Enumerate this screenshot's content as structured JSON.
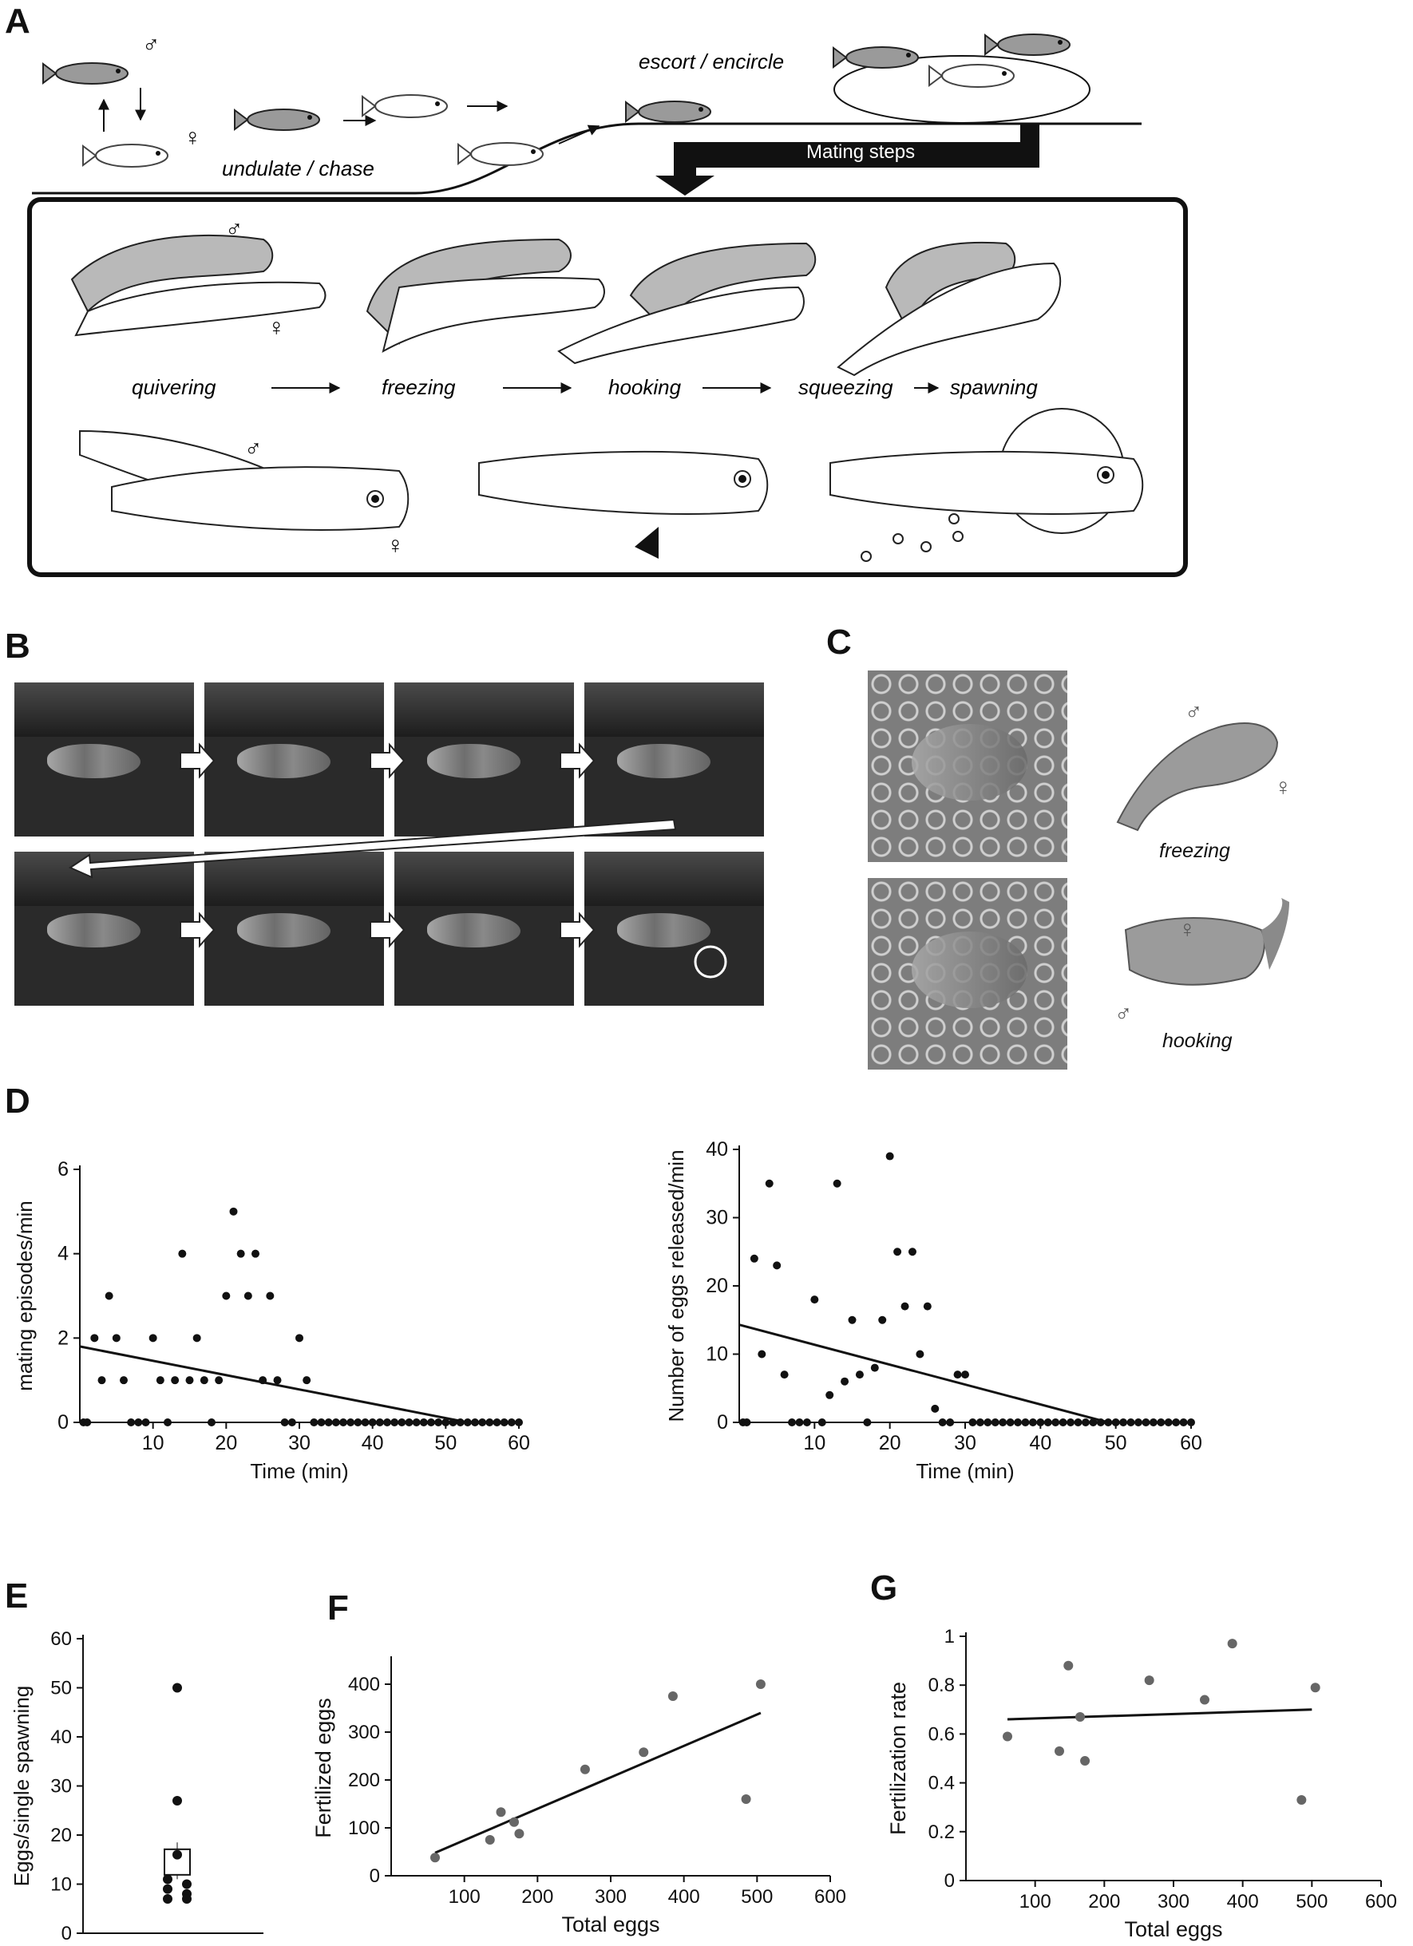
{
  "panels": {
    "A": {
      "label": "A",
      "texts": {
        "escort": "escort / encircle",
        "undulate": "undulate / chase",
        "mating_steps": "Mating steps",
        "male": "♂",
        "female": "♀"
      },
      "steps": [
        "quivering",
        "freezing",
        "hooking",
        "squeezing",
        "spawning"
      ]
    },
    "B": {
      "label": "B"
    },
    "C": {
      "label": "C",
      "freezing": "freezing",
      "hooking": "hooking",
      "male": "♂",
      "female": "♀"
    },
    "D": {
      "label": "D"
    },
    "E": {
      "label": "E"
    },
    "F": {
      "label": "F"
    },
    "G": {
      "label": "G"
    }
  },
  "chart_data": [
    {
      "id": "D-left",
      "type": "scatter",
      "ylabel": "mating episodes/min",
      "xlabel": "Time (min)",
      "xlim": [
        0,
        60
      ],
      "ylim": [
        0,
        6
      ],
      "xticks": [
        10,
        20,
        30,
        40,
        50,
        60
      ],
      "yticks": [
        0,
        2,
        4,
        6
      ],
      "points": [
        [
          0.5,
          0
        ],
        [
          1,
          0
        ],
        [
          2,
          2
        ],
        [
          3,
          1
        ],
        [
          4,
          3
        ],
        [
          5,
          2
        ],
        [
          6,
          1
        ],
        [
          7,
          0
        ],
        [
          8,
          0
        ],
        [
          9,
          0
        ],
        [
          10,
          2
        ],
        [
          11,
          1
        ],
        [
          12,
          0
        ],
        [
          13,
          1
        ],
        [
          14,
          4
        ],
        [
          15,
          1
        ],
        [
          16,
          2
        ],
        [
          17,
          1
        ],
        [
          18,
          0
        ],
        [
          19,
          1
        ],
        [
          20,
          3
        ],
        [
          21,
          5
        ],
        [
          22,
          4
        ],
        [
          23,
          3
        ],
        [
          24,
          4
        ],
        [
          25,
          1
        ],
        [
          26,
          3
        ],
        [
          27,
          1
        ],
        [
          28,
          0
        ],
        [
          29,
          0
        ],
        [
          30,
          2
        ],
        [
          31,
          1
        ],
        [
          32,
          0
        ],
        [
          33,
          0
        ],
        [
          34,
          0
        ],
        [
          35,
          0
        ],
        [
          36,
          0
        ],
        [
          37,
          0
        ],
        [
          38,
          0
        ],
        [
          39,
          0
        ],
        [
          40,
          0
        ],
        [
          41,
          0
        ],
        [
          42,
          0
        ],
        [
          43,
          0
        ],
        [
          44,
          0
        ],
        [
          45,
          0
        ],
        [
          46,
          0
        ],
        [
          47,
          0
        ],
        [
          48,
          0
        ],
        [
          49,
          0
        ],
        [
          50,
          0
        ],
        [
          51,
          0
        ],
        [
          52,
          0
        ],
        [
          53,
          0
        ],
        [
          54,
          0
        ],
        [
          55,
          0
        ],
        [
          56,
          0
        ],
        [
          57,
          0
        ],
        [
          58,
          0
        ],
        [
          59,
          0
        ],
        [
          60,
          0
        ]
      ],
      "fit": [
        [
          0,
          1.8
        ],
        [
          53,
          0
        ]
      ]
    },
    {
      "id": "D-right",
      "type": "scatter",
      "ylabel": "Number of eggs released/min",
      "xlabel": "Time (min)",
      "xlim": [
        0,
        60
      ],
      "ylim": [
        0,
        40
      ],
      "xticks": [
        10,
        20,
        30,
        40,
        50,
        60
      ],
      "yticks": [
        0,
        10,
        20,
        30,
        40
      ],
      "points": [
        [
          0.5,
          0
        ],
        [
          1,
          0
        ],
        [
          2,
          24
        ],
        [
          3,
          10
        ],
        [
          4,
          35
        ],
        [
          5,
          23
        ],
        [
          6,
          7
        ],
        [
          7,
          0
        ],
        [
          8,
          0
        ],
        [
          9,
          0
        ],
        [
          10,
          18
        ],
        [
          11,
          0
        ],
        [
          12,
          4
        ],
        [
          13,
          35
        ],
        [
          14,
          6
        ],
        [
          15,
          15
        ],
        [
          16,
          7
        ],
        [
          17,
          0
        ],
        [
          18,
          8
        ],
        [
          19,
          15
        ],
        [
          20,
          39
        ],
        [
          21,
          25
        ],
        [
          22,
          17
        ],
        [
          23,
          25
        ],
        [
          24,
          10
        ],
        [
          25,
          17
        ],
        [
          26,
          2
        ],
        [
          27,
          0
        ],
        [
          28,
          0
        ],
        [
          29,
          7
        ],
        [
          30,
          7
        ],
        [
          31,
          0
        ],
        [
          32,
          0
        ],
        [
          33,
          0
        ],
        [
          34,
          0
        ],
        [
          35,
          0
        ],
        [
          36,
          0
        ],
        [
          37,
          0
        ],
        [
          38,
          0
        ],
        [
          39,
          0
        ],
        [
          40,
          0
        ],
        [
          41,
          0
        ],
        [
          42,
          0
        ],
        [
          43,
          0
        ],
        [
          44,
          0
        ],
        [
          45,
          0
        ],
        [
          46,
          0
        ],
        [
          47,
          0
        ],
        [
          48,
          0
        ],
        [
          49,
          0
        ],
        [
          50,
          0
        ],
        [
          51,
          0
        ],
        [
          52,
          0
        ],
        [
          53,
          0
        ],
        [
          54,
          0
        ],
        [
          55,
          0
        ],
        [
          56,
          0
        ],
        [
          57,
          0
        ],
        [
          58,
          0
        ],
        [
          59,
          0
        ],
        [
          60,
          0
        ]
      ],
      "fit": [
        [
          0,
          14.3
        ],
        [
          49,
          0
        ]
      ]
    },
    {
      "id": "E",
      "type": "scatter",
      "ylabel": "Eggs/single spawning",
      "ylim": [
        0,
        60
      ],
      "yticks": [
        0,
        10,
        20,
        30,
        40,
        50,
        60
      ],
      "points": [
        50,
        27,
        16,
        11,
        10,
        9,
        8,
        7,
        7
      ],
      "mean": 14.5,
      "sem": [
        11,
        18.5
      ]
    },
    {
      "id": "F",
      "type": "scatter",
      "ylabel": "Fertilized eggs",
      "xlabel": "Total eggs",
      "xlim": [
        0,
        600
      ],
      "ylim": [
        0,
        450
      ],
      "xticks": [
        100,
        200,
        300,
        400,
        500,
        600
      ],
      "yticks": [
        0,
        100,
        200,
        300,
        400
      ],
      "points": [
        [
          60,
          38
        ],
        [
          135,
          75
        ],
        [
          150,
          133
        ],
        [
          168,
          112
        ],
        [
          175,
          88
        ],
        [
          265,
          222
        ],
        [
          345,
          258
        ],
        [
          385,
          375
        ],
        [
          485,
          160
        ],
        [
          505,
          400
        ]
      ],
      "fit": [
        [
          60,
          48
        ],
        [
          505,
          340
        ]
      ]
    },
    {
      "id": "G",
      "type": "scatter",
      "ylabel": "Fertilization rate",
      "xlabel": "Total eggs",
      "xlim": [
        0,
        600
      ],
      "ylim": [
        0,
        1.0
      ],
      "xticks": [
        100,
        200,
        300,
        400,
        500,
        600
      ],
      "yticks": [
        0,
        0.2,
        0.4,
        0.6,
        0.8,
        1.0
      ],
      "points": [
        [
          60,
          0.59
        ],
        [
          135,
          0.53
        ],
        [
          148,
          0.88
        ],
        [
          165,
          0.67
        ],
        [
          172,
          0.49
        ],
        [
          265,
          0.82
        ],
        [
          345,
          0.74
        ],
        [
          385,
          0.97
        ],
        [
          485,
          0.33
        ],
        [
          505,
          0.79
        ]
      ],
      "fit": [
        [
          60,
          0.66
        ],
        [
          500,
          0.7
        ]
      ]
    }
  ]
}
